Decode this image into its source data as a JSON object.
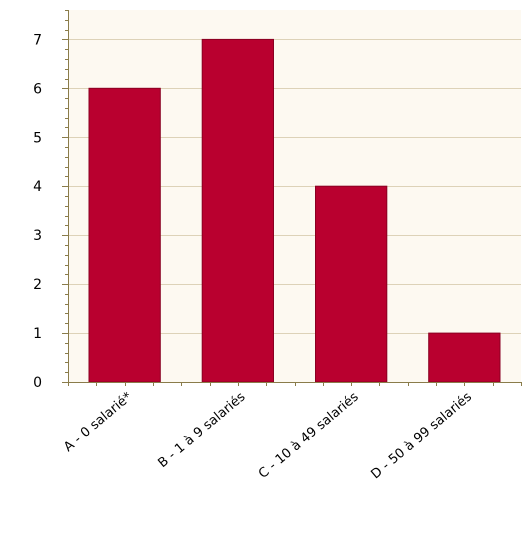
{
  "chart_data": {
    "type": "bar",
    "categories": [
      "A - 0 salarié*",
      "B - 1 à 9 salariés",
      "C - 10 à 49 salariés",
      "D - 50 à 99 salariés"
    ],
    "values": [
      6,
      7,
      4,
      1
    ],
    "title": "",
    "xlabel": "",
    "ylabel": "",
    "ylim": [
      0,
      7.6
    ],
    "yticks": [
      0,
      1,
      2,
      3,
      4,
      5,
      6,
      7
    ],
    "grid": true,
    "legend": "none",
    "colors": {
      "bar": "#b9002f",
      "bar_stroke": "#8a0022",
      "plot_background": "#fdf9f1",
      "gridline": "#ddd2b8",
      "axis": "#8a7c4a",
      "text": "#000000"
    }
  }
}
